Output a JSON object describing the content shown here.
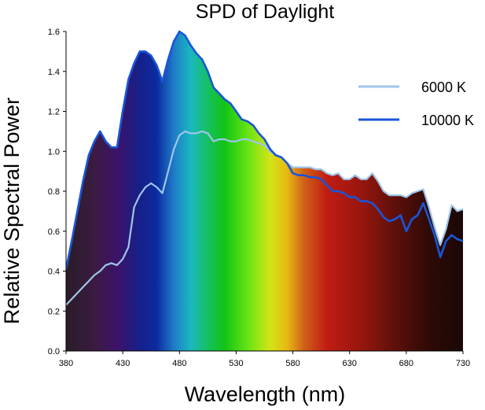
{
  "chart_data": {
    "type": "area",
    "title": "SPD of Daylight",
    "xlabel": "Wavelength (nm)",
    "ylabel": "Relative Spectral Power",
    "xlim": [
      380,
      730
    ],
    "ylim": [
      0,
      1.6
    ],
    "xticks": [
      380,
      430,
      480,
      530,
      580,
      630,
      680,
      730
    ],
    "yticks": [
      0.0,
      0.2,
      0.4,
      0.6,
      0.8,
      1.0,
      1.2,
      1.4,
      1.6
    ],
    "ytick_labels": [
      "0.0",
      "0.2",
      "0.4",
      "0.6",
      "0.8",
      "1.0",
      "1.2",
      "1.4",
      "1.6"
    ],
    "grid": false,
    "legend_position": "top-right",
    "fill": "visible-spectrum gradient under curves",
    "x": [
      380,
      385,
      390,
      395,
      400,
      405,
      410,
      415,
      420,
      425,
      430,
      435,
      440,
      445,
      450,
      455,
      460,
      465,
      470,
      475,
      480,
      485,
      490,
      495,
      500,
      505,
      510,
      515,
      520,
      525,
      530,
      535,
      540,
      545,
      550,
      555,
      560,
      565,
      570,
      575,
      580,
      585,
      590,
      595,
      600,
      605,
      610,
      615,
      620,
      625,
      630,
      635,
      640,
      645,
      650,
      655,
      660,
      665,
      670,
      675,
      680,
      685,
      690,
      695,
      700,
      705,
      710,
      715,
      720,
      725,
      730
    ],
    "series": [
      {
        "name": "6000 K",
        "color": "#9ec6ea",
        "values": [
          0.23,
          0.26,
          0.29,
          0.32,
          0.35,
          0.38,
          0.4,
          0.43,
          0.44,
          0.43,
          0.46,
          0.52,
          0.72,
          0.78,
          0.82,
          0.84,
          0.82,
          0.79,
          0.9,
          1.01,
          1.08,
          1.1,
          1.09,
          1.09,
          1.1,
          1.09,
          1.05,
          1.06,
          1.06,
          1.05,
          1.05,
          1.06,
          1.06,
          1.05,
          1.04,
          1.03,
          1.0,
          0.98,
          0.97,
          0.94,
          0.92,
          0.92,
          0.92,
          0.92,
          0.91,
          0.91,
          0.89,
          0.88,
          0.89,
          0.86,
          0.86,
          0.88,
          0.86,
          0.86,
          0.89,
          0.85,
          0.8,
          0.78,
          0.78,
          0.78,
          0.77,
          0.79,
          0.8,
          0.81,
          0.72,
          0.62,
          0.53,
          0.61,
          0.73,
          0.7,
          0.71
        ]
      },
      {
        "name": "10000 K",
        "color": "#1a55d8",
        "values": [
          0.41,
          0.55,
          0.7,
          0.85,
          0.98,
          1.05,
          1.1,
          1.05,
          1.02,
          1.02,
          1.2,
          1.36,
          1.44,
          1.5,
          1.5,
          1.48,
          1.43,
          1.35,
          1.46,
          1.55,
          1.6,
          1.58,
          1.53,
          1.49,
          1.46,
          1.4,
          1.32,
          1.29,
          1.26,
          1.24,
          1.2,
          1.16,
          1.15,
          1.13,
          1.09,
          1.06,
          1.01,
          0.98,
          0.97,
          0.94,
          0.89,
          0.88,
          0.88,
          0.87,
          0.87,
          0.86,
          0.83,
          0.8,
          0.8,
          0.79,
          0.77,
          0.77,
          0.75,
          0.75,
          0.74,
          0.71,
          0.67,
          0.65,
          0.66,
          0.68,
          0.6,
          0.66,
          0.68,
          0.74,
          0.66,
          0.58,
          0.47,
          0.55,
          0.58,
          0.56,
          0.55
        ]
      }
    ]
  }
}
